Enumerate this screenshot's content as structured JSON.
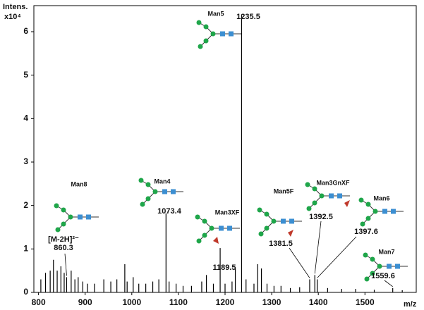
{
  "chart_data": {
    "type": "stem",
    "y_label": "Intens.",
    "y_scale_label": "x10⁴",
    "x_label": "m/z",
    "ion_note": "[M-2H]²⁻",
    "xlim": [
      790,
      1610
    ],
    "xticks": [
      800,
      900,
      1000,
      1100,
      1200,
      1300,
      1400,
      1500
    ],
    "ylim": [
      0,
      6.6
    ],
    "yticks": [
      0,
      1,
      2,
      3,
      4,
      5,
      6
    ],
    "color": "#000000",
    "x": [
      805,
      815,
      825,
      832,
      840,
      848,
      855,
      860.3,
      870,
      878,
      885,
      895,
      905,
      920,
      940,
      955,
      968,
      985,
      990,
      1003,
      1015,
      1030,
      1045,
      1058,
      1073.4,
      1080,
      1095,
      1110,
      1128,
      1150,
      1160,
      1175,
      1189.5,
      1200,
      1215,
      1222,
      1235.5,
      1245,
      1262,
      1270,
      1278,
      1290,
      1305,
      1320,
      1340,
      1360,
      1381.5,
      1392.5,
      1397.6,
      1420,
      1450,
      1480,
      1520,
      1559.6,
      1580
    ],
    "values": [
      0.3,
      0.45,
      0.5,
      0.75,
      0.5,
      0.6,
      0.45,
      0.35,
      0.5,
      0.3,
      0.35,
      0.25,
      0.2,
      0.2,
      0.3,
      0.25,
      0.3,
      0.65,
      0.25,
      0.35,
      0.2,
      0.2,
      0.25,
      0.3,
      1.82,
      0.25,
      0.2,
      0.15,
      0.15,
      0.25,
      0.4,
      0.2,
      1.02,
      0.2,
      0.25,
      0.55,
      6.38,
      0.3,
      0.2,
      0.65,
      0.55,
      0.2,
      0.15,
      0.15,
      0.1,
      0.12,
      0.3,
      0.4,
      0.3,
      0.1,
      0.08,
      0.08,
      0.06,
      0.1,
      0.05
    ],
    "peak_names": [
      null,
      null,
      null,
      null,
      null,
      null,
      null,
      "Man8",
      null,
      null,
      null,
      null,
      null,
      null,
      null,
      null,
      null,
      null,
      null,
      null,
      null,
      null,
      null,
      null,
      "Man4",
      null,
      null,
      null,
      null,
      null,
      null,
      null,
      "Man3XF",
      null,
      null,
      null,
      "Man5",
      null,
      null,
      null,
      null,
      null,
      null,
      null,
      null,
      null,
      "Man5F",
      "Man3GnXF",
      "Man6",
      null,
      null,
      null,
      null,
      "Man7",
      null
    ]
  }
}
